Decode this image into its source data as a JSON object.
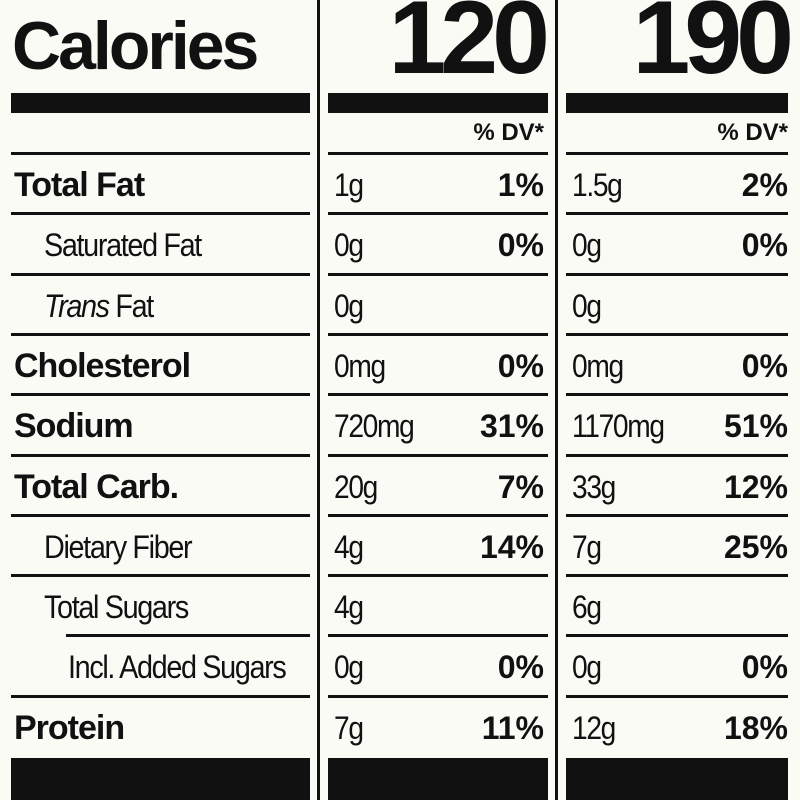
{
  "calories": {
    "label": "Calories",
    "values": [
      "120",
      "190"
    ]
  },
  "dv_header": [
    "% DV*",
    "% DV*"
  ],
  "rows": [
    {
      "label": "Total Fat",
      "label_em": "",
      "style": "bold",
      "indent": 0,
      "cols": [
        {
          "amount": "1g",
          "dv": "1%"
        },
        {
          "amount": "1.5g",
          "dv": "2%"
        }
      ]
    },
    {
      "label": "Saturated Fat",
      "label_em": "",
      "style": "sub",
      "indent": 1,
      "cols": [
        {
          "amount": "0g",
          "dv": "0%"
        },
        {
          "amount": "0g",
          "dv": "0%"
        }
      ]
    },
    {
      "label": "Fat",
      "label_em": "Trans",
      "style": "sub",
      "indent": 1,
      "cols": [
        {
          "amount": "0g",
          "dv": ""
        },
        {
          "amount": "0g",
          "dv": ""
        }
      ]
    },
    {
      "label": "Cholesterol",
      "label_em": "",
      "style": "bold",
      "indent": 0,
      "cols": [
        {
          "amount": "0mg",
          "dv": "0%"
        },
        {
          "amount": "0mg",
          "dv": "0%"
        }
      ]
    },
    {
      "label": "Sodium",
      "label_em": "",
      "style": "bold",
      "indent": 0,
      "cols": [
        {
          "amount": "720mg",
          "dv": "31%"
        },
        {
          "amount": "1170mg",
          "dv": "51%"
        }
      ]
    },
    {
      "label": "Total Carb.",
      "label_em": "",
      "style": "bold",
      "indent": 0,
      "cols": [
        {
          "amount": "20g",
          "dv": "7%"
        },
        {
          "amount": "33g",
          "dv": "12%"
        }
      ]
    },
    {
      "label": "Dietary Fiber",
      "label_em": "",
      "style": "sub",
      "indent": 1,
      "cols": [
        {
          "amount": "4g",
          "dv": "14%"
        },
        {
          "amount": "7g",
          "dv": "25%"
        }
      ]
    },
    {
      "label": "Total Sugars",
      "label_em": "",
      "style": "sub",
      "indent": 1,
      "cols": [
        {
          "amount": "4g",
          "dv": ""
        },
        {
          "amount": "6g",
          "dv": ""
        }
      ]
    },
    {
      "label": "Incl. Added Sugars",
      "label_em": "",
      "style": "sub",
      "indent": 2,
      "cols": [
        {
          "amount": "0g",
          "dv": "0%"
        },
        {
          "amount": "0g",
          "dv": "0%"
        }
      ]
    },
    {
      "label": "Protein",
      "label_em": "",
      "style": "bold",
      "indent": 0,
      "cols": [
        {
          "amount": "7g",
          "dv": "11%"
        },
        {
          "amount": "12g",
          "dv": "18%"
        }
      ]
    }
  ],
  "colors": {
    "ink": "#111111",
    "paper": "#fbfbf6"
  }
}
